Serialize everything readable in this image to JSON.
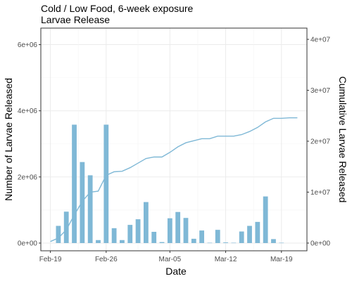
{
  "chart_data": {
    "type": "bar",
    "title": "Cold / Low Food, 6-week exposure",
    "subtitle": "Larvae Release",
    "xlabel": "Date",
    "ylabel": "Number of Larvae Released",
    "y2label": "Cumulative Larvae Released",
    "x_ticks": [
      {
        "date": "2024-02-19",
        "label": "Feb-19"
      },
      {
        "date": "2024-02-26",
        "label": "Feb-26"
      },
      {
        "date": "2024-03-05",
        "label": "Mar-05"
      },
      {
        "date": "2024-03-12",
        "label": "Mar-12"
      },
      {
        "date": "2024-03-19",
        "label": "Mar-19"
      }
    ],
    "xlim": [
      "2024-02-19",
      "2024-03-21"
    ],
    "ylim": [
      0,
      6500000
    ],
    "y_ticks": [
      {
        "value": 0,
        "label": "0e+00"
      },
      {
        "value": 2000000,
        "label": "2e+06"
      },
      {
        "value": 4000000,
        "label": "4e+06"
      },
      {
        "value": 6000000,
        "label": "6e+06"
      }
    ],
    "y2lim": [
      0,
      40000000
    ],
    "y2_ticks": [
      {
        "value": 0,
        "label": "0e+00"
      },
      {
        "value": 10000000,
        "label": "1e+07"
      },
      {
        "value": 20000000,
        "label": "2e+07"
      },
      {
        "value": 30000000,
        "label": "3e+07"
      },
      {
        "value": 40000000,
        "label": "4e+07"
      }
    ],
    "grid": true,
    "bar_color": "#7fb8d6",
    "line_color": "#7fb8d6",
    "series": [
      {
        "type": "bar",
        "axis": "left",
        "points": [
          {
            "date": "2024-02-20",
            "value": 520000
          },
          {
            "date": "2024-02-21",
            "value": 950000
          },
          {
            "date": "2024-02-22",
            "value": 3580000
          },
          {
            "date": "2024-02-23",
            "value": 2450000
          },
          {
            "date": "2024-02-24",
            "value": 2050000
          },
          {
            "date": "2024-02-25",
            "value": 90000
          },
          {
            "date": "2024-02-26",
            "value": 3580000
          },
          {
            "date": "2024-02-27",
            "value": 450000
          },
          {
            "date": "2024-02-28",
            "value": 90000
          },
          {
            "date": "2024-02-29",
            "value": 550000
          },
          {
            "date": "2024-03-01",
            "value": 720000
          },
          {
            "date": "2024-03-02",
            "value": 1240000
          },
          {
            "date": "2024-03-03",
            "value": 340000
          },
          {
            "date": "2024-03-04",
            "value": 30000
          },
          {
            "date": "2024-03-05",
            "value": 750000
          },
          {
            "date": "2024-03-06",
            "value": 940000
          },
          {
            "date": "2024-03-07",
            "value": 760000
          },
          {
            "date": "2024-03-08",
            "value": 130000
          },
          {
            "date": "2024-03-09",
            "value": 380000
          },
          {
            "date": "2024-03-10",
            "value": 10000
          },
          {
            "date": "2024-03-11",
            "value": 400000
          },
          {
            "date": "2024-03-12",
            "value": 20000
          },
          {
            "date": "2024-03-13",
            "value": 10000
          },
          {
            "date": "2024-03-14",
            "value": 350000
          },
          {
            "date": "2024-03-15",
            "value": 520000
          },
          {
            "date": "2024-03-16",
            "value": 640000
          },
          {
            "date": "2024-03-17",
            "value": 1410000
          },
          {
            "date": "2024-03-18",
            "value": 120000
          },
          {
            "date": "2024-03-19",
            "value": 10000
          }
        ]
      },
      {
        "type": "line",
        "axis": "right",
        "points": [
          {
            "date": "2024-02-19",
            "value": 300000
          },
          {
            "date": "2024-02-20",
            "value": 1000000
          },
          {
            "date": "2024-02-21",
            "value": 2600000
          },
          {
            "date": "2024-02-22",
            "value": 5500000
          },
          {
            "date": "2024-02-23",
            "value": 8200000
          },
          {
            "date": "2024-02-24",
            "value": 10000000
          },
          {
            "date": "2024-02-25",
            "value": 10200000
          },
          {
            "date": "2024-02-26",
            "value": 13300000
          },
          {
            "date": "2024-02-27",
            "value": 14000000
          },
          {
            "date": "2024-02-28",
            "value": 14100000
          },
          {
            "date": "2024-02-29",
            "value": 14800000
          },
          {
            "date": "2024-03-01",
            "value": 15700000
          },
          {
            "date": "2024-03-02",
            "value": 16600000
          },
          {
            "date": "2024-03-03",
            "value": 16900000
          },
          {
            "date": "2024-03-04",
            "value": 16900000
          },
          {
            "date": "2024-03-05",
            "value": 17800000
          },
          {
            "date": "2024-03-06",
            "value": 18900000
          },
          {
            "date": "2024-03-07",
            "value": 19700000
          },
          {
            "date": "2024-03-08",
            "value": 20100000
          },
          {
            "date": "2024-03-09",
            "value": 20500000
          },
          {
            "date": "2024-03-10",
            "value": 20500000
          },
          {
            "date": "2024-03-11",
            "value": 21000000
          },
          {
            "date": "2024-03-12",
            "value": 21000000
          },
          {
            "date": "2024-03-13",
            "value": 21000000
          },
          {
            "date": "2024-03-14",
            "value": 21300000
          },
          {
            "date": "2024-03-15",
            "value": 21900000
          },
          {
            "date": "2024-03-16",
            "value": 22700000
          },
          {
            "date": "2024-03-17",
            "value": 23800000
          },
          {
            "date": "2024-03-18",
            "value": 24500000
          },
          {
            "date": "2024-03-19",
            "value": 24500000
          },
          {
            "date": "2024-03-20",
            "value": 24600000
          },
          {
            "date": "2024-03-21",
            "value": 24600000
          }
        ]
      }
    ]
  }
}
